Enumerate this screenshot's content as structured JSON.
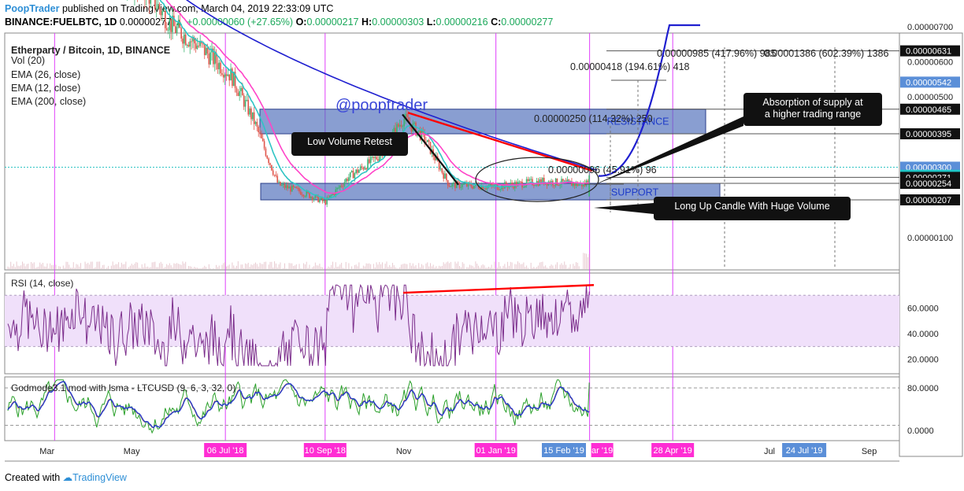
{
  "header": {
    "publisher": "PoopTrader",
    "published_text": "published on TradingView.com, March 04, 2019 22:33:09 UTC",
    "symbol": "BINANCE:FUELBTC, 1D",
    "last": "0.00000277",
    "change": "+0.00000060 (+27.65%)",
    "o_label": "O:",
    "o": "0.00000217",
    "h_label": "H:",
    "h": "0.00000303",
    "l_label": "L:",
    "l": "0.00000216",
    "c_label": "C:",
    "c": "0.00000277"
  },
  "legend": {
    "title": "Etherparty / Bitcoin, 1D, BINANCE",
    "vol": "Vol (20)",
    "ema26": "EMA (26, close)",
    "ema12": "EMA (12, close)",
    "ema200": "EMA (200, close)"
  },
  "annotations": {
    "watermark": "@pooptrader",
    "low_volume": "Low Volume Retest",
    "absorption_1": "Absorption of supply at",
    "absorption_2": "a higher trading range",
    "long_up": "Long Up Candle With Huge Volume",
    "resistance": "RESISTANCE",
    "support": "SUPPORT",
    "m1": "0.00000985 (417.96%) 985",
    "m2": "0.00001386 (602.39%) 1386",
    "m3": "0.00000418 (194.61%) 418",
    "m4": "0.00000250 (114.32%) 250",
    "m5": "0.00000096 (45.91%) 96"
  },
  "rsi_label": "RSI (14, close)",
  "god_label": "Godmode3.1 mod with lsma - LTCUSD (9, 6, 3, 32, 0)",
  "footer": {
    "created": "Created with",
    "tv": "TradingView"
  },
  "colors": {
    "pink_vline": "#e040fb",
    "ema200": "#1f1fd0",
    "ema12": "#ff44c8",
    "ema26": "#2ec4c4",
    "zone": "#4a6ab8",
    "resist_line": "#ff0000",
    "rsi": "#7b2d8b",
    "rsi_band": "#f0e0fa",
    "god_green": "#2aa02a",
    "god_blue": "#2a3cc8",
    "god_orange": "#ff8c1a",
    "axis_tag": "#0d0d0d"
  },
  "chart_data": {
    "type": "candlestick",
    "symbol": "BINANCE:FUELBTC",
    "timeframe": "1D",
    "y_ticks": [
      "0.00000700",
      "0.00000600",
      "0.00000500",
      "0.00000100"
    ],
    "price_tags": [
      {
        "value": "0.00000631",
        "style": "dark"
      },
      {
        "value": "0.00000542",
        "style": "blue"
      },
      {
        "value": "0.00000465",
        "style": "dark"
      },
      {
        "value": "0.00000395",
        "style": "dark"
      },
      {
        "value": "0.00000300",
        "style": "blue"
      },
      {
        "value": "0.00000277",
        "style": "cyan"
      },
      {
        "value": "0.00000271",
        "style": "dark"
      },
      {
        "value": "0.00000254",
        "style": "dark"
      },
      {
        "value": "0.00000207",
        "style": "dark"
      }
    ],
    "x_ticks": [
      "Mar",
      "May",
      "Jul",
      "Sep",
      "Nov",
      "Jul",
      "Sep"
    ],
    "highlighted_dates": [
      "06 Jul '18",
      "10 Sep '18",
      "01 Jan '19",
      "28 Apr '19"
    ],
    "blue_dates": [
      "15 Feb '19",
      "24 Jul '19"
    ],
    "partial_date": "ar '19",
    "price_path": [
      [
        "2018-03-01",
        9e-06
      ],
      [
        "2018-04-15",
        8.7e-06
      ],
      [
        "2018-05-15",
        8e-06
      ],
      [
        "2018-06-01",
        7e-06
      ],
      [
        "2018-06-20",
        6.4e-06
      ],
      [
        "2018-07-10",
        5.6e-06
      ],
      [
        "2018-07-25",
        4.3e-06
      ],
      [
        "2018-08-10",
        2.5e-06
      ],
      [
        "2018-08-25",
        2.3e-06
      ],
      [
        "2018-09-10",
        2e-06
      ],
      [
        "2018-09-25",
        2.7e-06
      ],
      [
        "2018-10-15",
        3.3e-06
      ],
      [
        "2018-11-01",
        4.4e-06
      ],
      [
        "2018-11-15",
        3.8e-06
      ],
      [
        "2018-12-01",
        2.5e-06
      ],
      [
        "2019-01-01",
        2.45e-06
      ],
      [
        "2019-02-01",
        2.6e-06
      ],
      [
        "2019-03-01",
        2.5e-06
      ],
      [
        "2019-03-04",
        2.77e-06
      ]
    ],
    "zones": [
      {
        "name": "RESISTANCE",
        "low": 3.95e-06,
        "high": 4.65e-06
      },
      {
        "name": "SUPPORT",
        "low": 2.07e-06,
        "high": 2.54e-06
      }
    ],
    "rsi": {
      "ticks": [
        "60.0000",
        "40.0000",
        "20.0000"
      ],
      "band": [
        30,
        70
      ],
      "last": 73
    },
    "godmode": {
      "ticks": [
        "80.0000",
        "0.0000"
      ]
    }
  }
}
